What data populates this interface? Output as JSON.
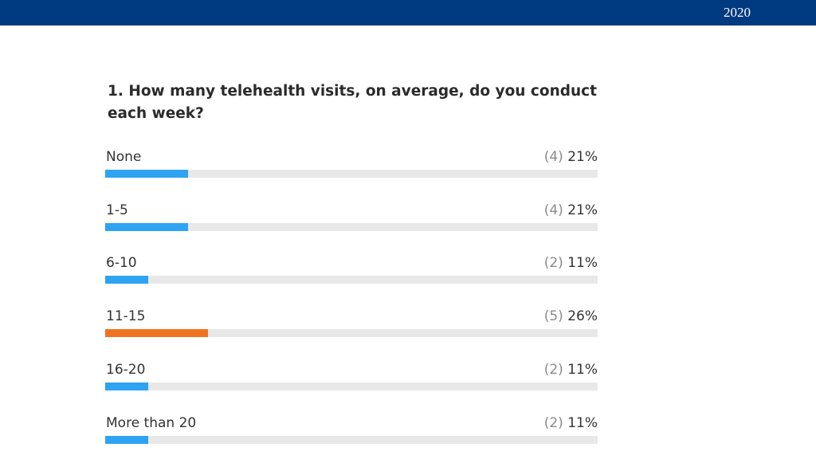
{
  "header": {
    "year": "2020"
  },
  "chart_data": {
    "type": "bar",
    "title": "1. How many telehealth visits, on average, do you conduct each week?",
    "categories": [
      "None",
      "1-5",
      "6-10",
      "11-15",
      "16-20",
      "More than 20"
    ],
    "counts": [
      4,
      4,
      2,
      5,
      2,
      2
    ],
    "values": [
      21,
      21,
      11,
      26,
      11,
      11
    ],
    "count_labels": [
      "(4)",
      "(4)",
      "(2)",
      "(5)",
      "(2)",
      "(2)"
    ],
    "percent_labels": [
      "21%",
      "21%",
      "11%",
      "26%",
      "11%",
      "11%"
    ],
    "highlight_index": 3,
    "colors": {
      "default": "#2ea3f2",
      "highlight": "#f07322",
      "track": "#e8e8e8"
    }
  }
}
